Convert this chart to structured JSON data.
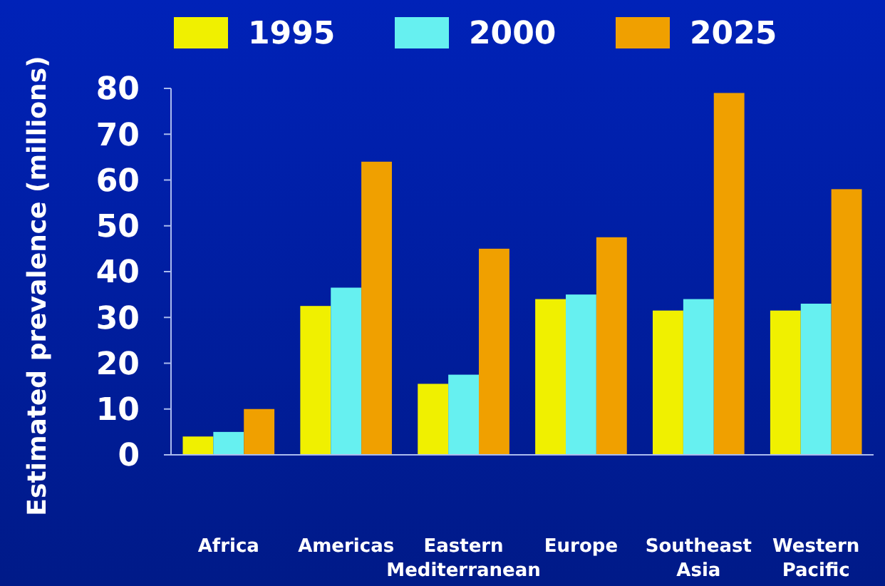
{
  "chart_data": {
    "type": "bar",
    "ylabel": "Estimated prevalence (millions)",
    "categories": [
      "Africa",
      "Americas",
      "Eastern Mediterranean",
      "Europe",
      "Southeast Asia",
      "Western Pacific"
    ],
    "series": [
      {
        "name": "1995",
        "color": "#f0f000",
        "values": [
          4,
          32.5,
          15.5,
          34,
          31.5,
          31.5
        ]
      },
      {
        "name": "2000",
        "color": "#66f0f0",
        "values": [
          5,
          36.5,
          17.5,
          35,
          34,
          33
        ]
      },
      {
        "name": "2025",
        "color": "#f0a000",
        "values": [
          10,
          64,
          45,
          47.5,
          79,
          58
        ]
      }
    ],
    "ylim": [
      0,
      80
    ],
    "yticks": [
      0,
      10,
      20,
      30,
      40,
      50,
      60,
      70,
      80
    ],
    "legend": "top",
    "grid": false
  }
}
